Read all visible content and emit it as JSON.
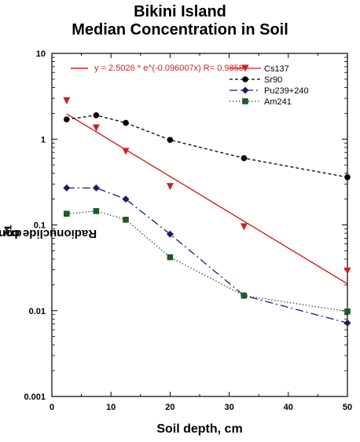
{
  "chart_data": {
    "type": "scatter",
    "title": "Bikini Island",
    "subtitle": "Median Concentration in Soil",
    "xlabel": "Soil depth, cm",
    "ylabel_prefix": "Radionuclide concentration, Bq g",
    "ylabel_sup": "-1",
    "ylabel_suffix": " dry wt.",
    "xlim": [
      0,
      50
    ],
    "ylim": [
      0.001,
      10
    ],
    "yscale": "log",
    "x_ticks": [
      "0",
      "10",
      "20",
      "30",
      "40",
      "50"
    ],
    "y_ticks": [
      "0.001",
      "0.01",
      "0.1",
      "1",
      "10"
    ],
    "grid": false,
    "legend_position": "top-right",
    "fit": {
      "equation": "y = 2.5026 * e^(-0.096007x)  R= 0.98587",
      "a": 2.5026,
      "b": -0.096007,
      "color": "#cc2222"
    },
    "series": [
      {
        "name": "Cs137",
        "marker": "triangle-down",
        "line": "fit",
        "color": "#cc2222",
        "x": [
          2.5,
          7.5,
          12.5,
          20,
          32.5,
          50
        ],
        "y": [
          2.8,
          1.35,
          0.72,
          0.28,
          0.095,
          0.029
        ]
      },
      {
        "name": "Sr90",
        "marker": "circle",
        "line": "dashed",
        "color": "#000000",
        "x": [
          2.5,
          7.5,
          12.5,
          20,
          32.5,
          50
        ],
        "y": [
          1.7,
          1.9,
          1.55,
          0.98,
          0.6,
          0.36
        ]
      },
      {
        "name": "Pu239+240",
        "marker": "diamond",
        "line": "dashdot",
        "color": "#1a1a6e",
        "x": [
          2.5,
          7.5,
          12.5,
          20,
          32.5,
          50
        ],
        "y": [
          0.27,
          0.27,
          0.2,
          0.078,
          0.015,
          0.0072
        ]
      },
      {
        "name": "Am241",
        "marker": "square",
        "line": "dotted",
        "color": "#1f5a2a",
        "x": [
          2.5,
          7.5,
          12.5,
          20,
          32.5,
          50
        ],
        "y": [
          0.135,
          0.145,
          0.115,
          0.042,
          0.015,
          0.0098
        ]
      }
    ]
  }
}
